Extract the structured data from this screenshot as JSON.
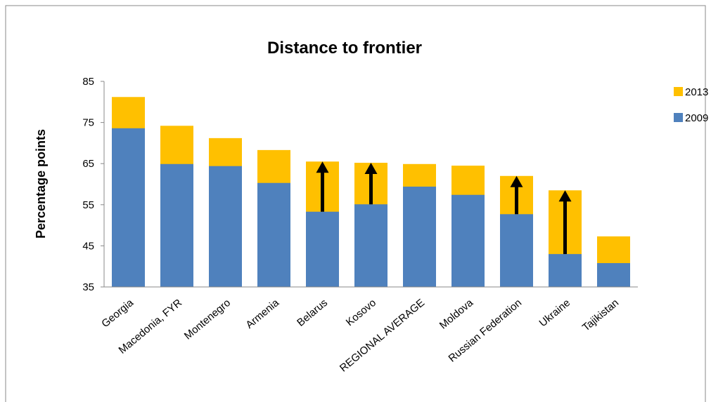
{
  "chart_data": {
    "type": "bar",
    "title": "Distance to frontier",
    "y_label": "Percentage points",
    "categories": [
      "Georgia",
      "Macedonia, FYR",
      "Montenegro",
      "Armenia",
      "Belarus",
      "Kosovo",
      "REGIONAL AVERAGE",
      "Moldova",
      "Russian Federation",
      "Ukraine",
      "Tajikistan"
    ],
    "series": [
      {
        "name": "2013",
        "color": "#ffc000",
        "values": [
          81.2,
          74.2,
          71.2,
          68.3,
          65.5,
          65.2,
          64.9,
          64.5,
          62.0,
          58.5,
          47.3
        ]
      },
      {
        "name": "2009",
        "color": "#4f81bd",
        "values": [
          73.6,
          64.9,
          64.4,
          60.3,
          53.3,
          55.1,
          59.4,
          57.4,
          52.7,
          43.0,
          40.8
        ]
      }
    ],
    "arrows": [
      false,
      false,
      false,
      false,
      true,
      true,
      false,
      false,
      true,
      true,
      false
    ],
    "ylim": [
      35,
      85
    ],
    "yticks": [
      35,
      45,
      55,
      65,
      75,
      85
    ],
    "grid": false,
    "legend": "right"
  }
}
